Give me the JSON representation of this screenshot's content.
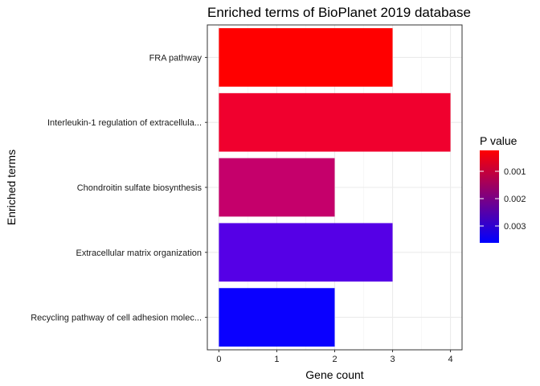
{
  "chart_data": {
    "type": "bar",
    "orientation": "horizontal",
    "title": "Enriched terms of BioPlanet 2019 database",
    "xlabel": "Gene count",
    "ylabel": "Enriched terms",
    "xlim": [
      0,
      4.15
    ],
    "x_ticks": [
      0,
      1,
      2,
      3,
      4
    ],
    "x_tick_labels": [
      "0",
      "1",
      "2",
      "3",
      "4"
    ],
    "grid": true,
    "categories": [
      "FRA pathway",
      "Interleukin-1 regulation of extracellula...",
      "Chondroitin sulfate biosynthesis",
      "Extracellular matrix organization",
      "Recycling pathway of cell adhesion molec..."
    ],
    "values": [
      3,
      4,
      2,
      3,
      2
    ],
    "bar_colors": [
      "#FF0000",
      "#F0002E",
      "#C5006B",
      "#5500E6",
      "#0A00FF"
    ],
    "legend": {
      "title": "P value",
      "position": "right",
      "ticks": [
        "0.001",
        "0.002",
        "0.003"
      ],
      "colors": [
        "#FF0000",
        "#0000FF"
      ]
    }
  }
}
